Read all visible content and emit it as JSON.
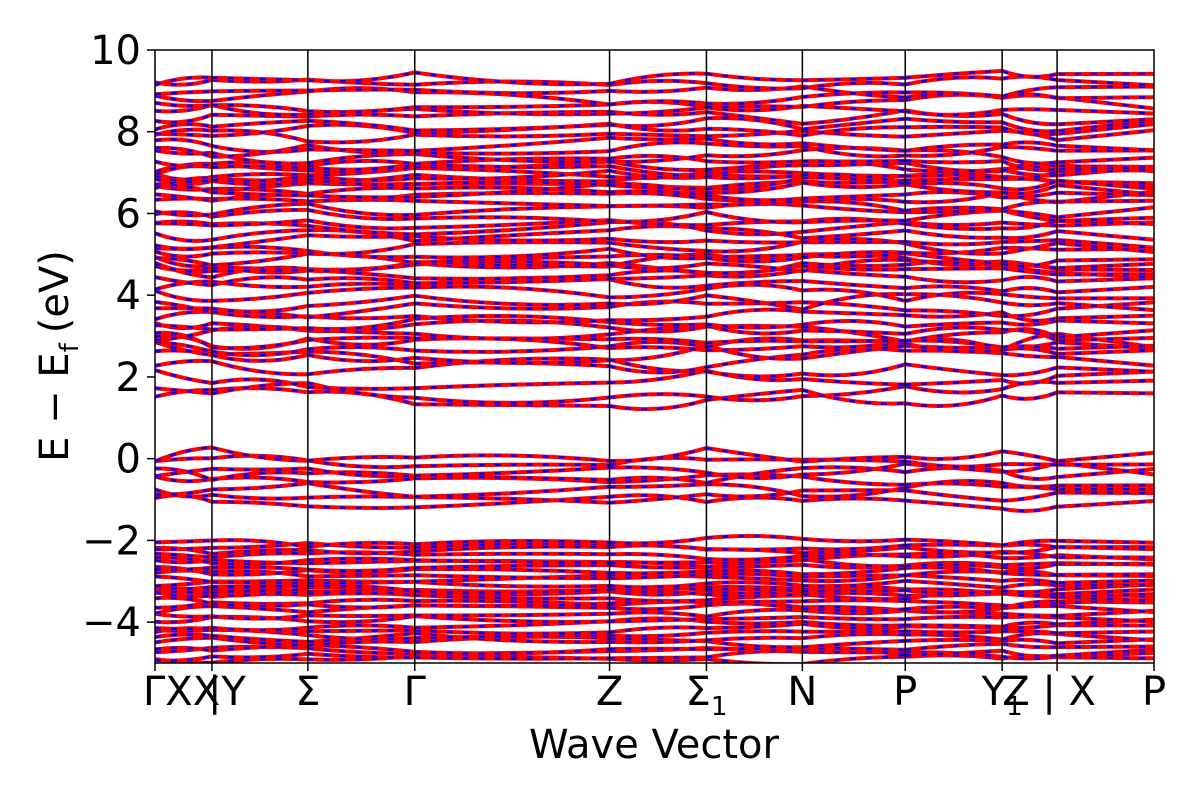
{
  "chart_data": {
    "type": "line",
    "title": "",
    "xlabel": "Wave Vector",
    "ylabel": "E − E",
    "ylabel_sub": "f",
    "ylabel_unit": "(eV)",
    "ylim": [
      -5,
      10
    ],
    "yticks": [
      {
        "value": -4,
        "label": "−4"
      },
      {
        "value": -2,
        "label": "−2"
      },
      {
        "value": 0,
        "label": "0"
      },
      {
        "value": 2,
        "label": "2"
      },
      {
        "value": 4,
        "label": "4"
      },
      {
        "value": 6,
        "label": "6"
      },
      {
        "value": 8,
        "label": "8"
      },
      {
        "value": 10,
        "label": "10"
      }
    ],
    "xlim": [
      0,
      1
    ],
    "high_symmetry_points": [
      {
        "x": 0.0,
        "label": "ΓXX"
      },
      {
        "x": 0.057,
        "label": "|Y"
      },
      {
        "x": 0.153,
        "label": "Σ"
      },
      {
        "x": 0.26,
        "label": "Γ"
      },
      {
        "x": 0.455,
        "label": "Z"
      },
      {
        "x": 0.552,
        "label": "Σ"
      },
      {
        "x": 0.648,
        "label": "N"
      },
      {
        "x": 0.751,
        "label": "P"
      },
      {
        "x": 0.848,
        "label": "Y"
      },
      {
        "x": 0.903,
        "label": "Z | X"
      },
      {
        "x": 1.0,
        "label": "P"
      }
    ],
    "sigma1_subscript": "1",
    "y1_subscript": "1",
    "discontinuity_x": 0.903,
    "series": [
      {
        "color": "#ff0000",
        "style": "solid"
      },
      {
        "color": "#0000ff",
        "style": "dashed"
      }
    ],
    "band_groups": [
      {
        "ymin": -5.0,
        "ymax": -3.2,
        "count": 16
      },
      {
        "ymin": -3.4,
        "ymax": -2.0,
        "count": 14
      },
      {
        "ymin": -1.2,
        "ymax": 0.2,
        "count": 8
      },
      {
        "ymin": 1.4,
        "ymax": 3.2,
        "count": 8
      },
      {
        "ymin": 2.6,
        "ymax": 4.9,
        "count": 12
      },
      {
        "ymin": 4.5,
        "ymax": 7.2,
        "count": 18
      },
      {
        "ymin": 6.5,
        "ymax": 9.4,
        "count": 18
      }
    ],
    "grid": false,
    "legend": "none"
  }
}
